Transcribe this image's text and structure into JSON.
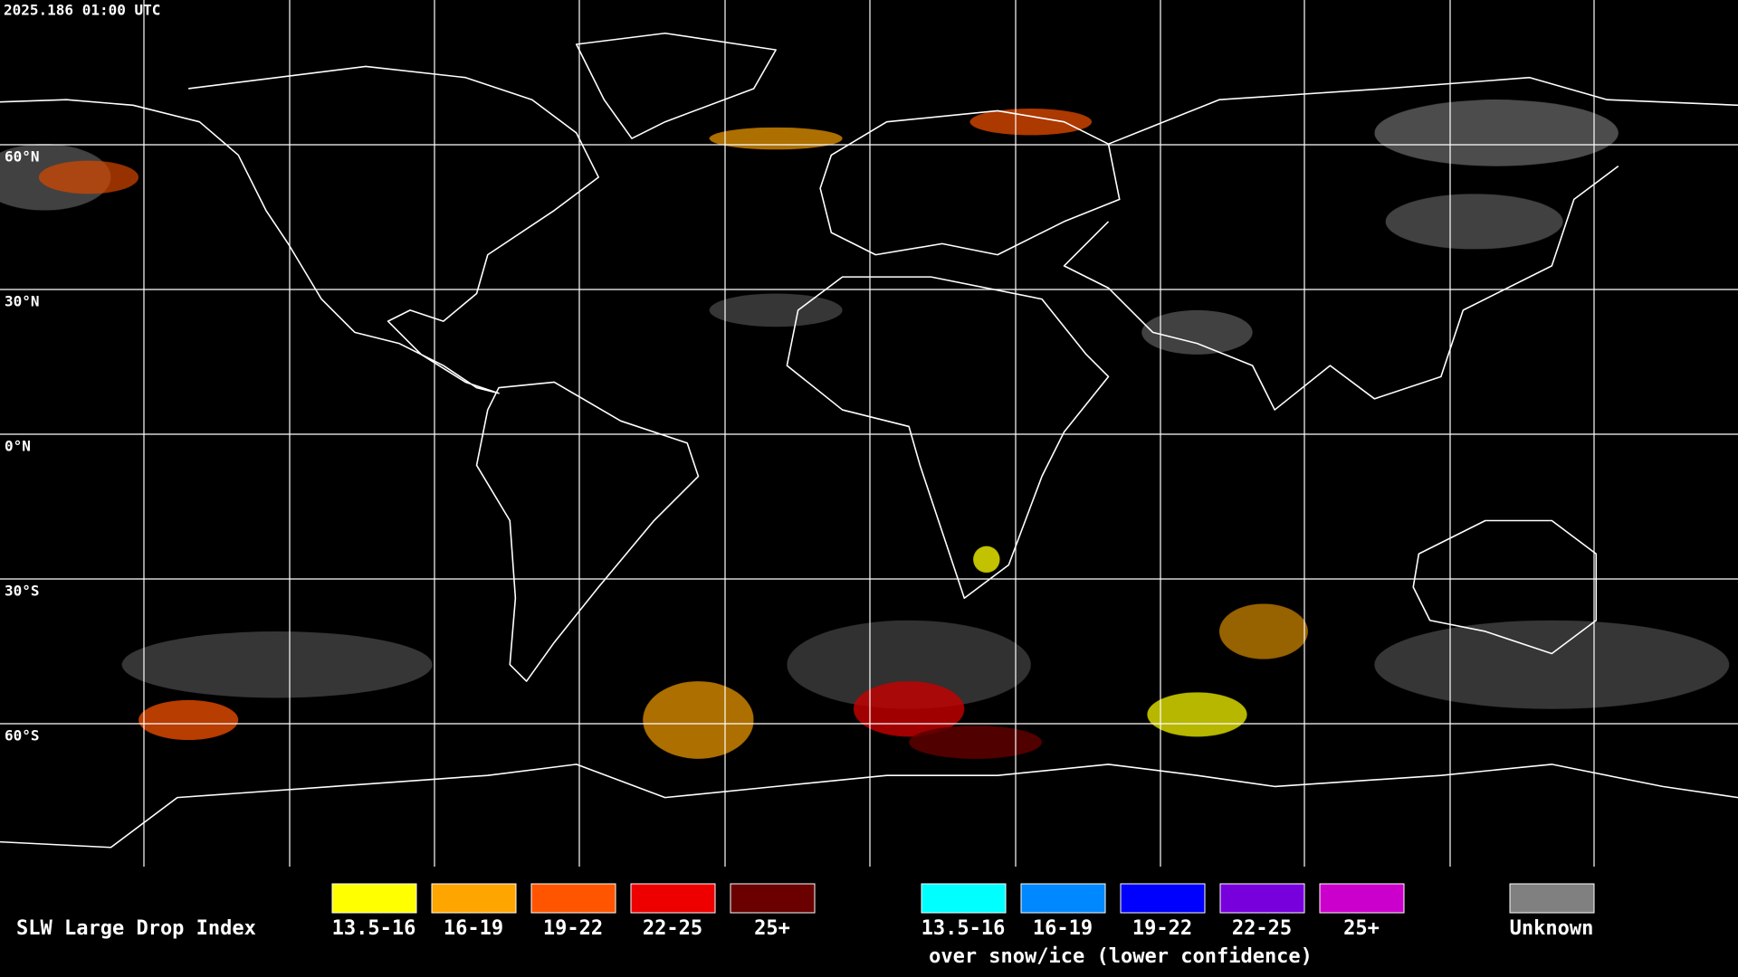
{
  "header": {
    "timestamp": "2025.186 01:00 UTC"
  },
  "map": {
    "latitude_labels": [
      "60°N",
      "30°N",
      "0°N",
      "30°S",
      "60°S"
    ]
  },
  "legend": {
    "title": "SLW Large Drop Index",
    "items": [
      {
        "label": "13.5-16",
        "color": "#ffff00"
      },
      {
        "label": "16-19",
        "color": "#ffa500"
      },
      {
        "label": "19-22",
        "color": "#ff5500"
      },
      {
        "label": "22-25",
        "color": "#ee0000"
      },
      {
        "label": "25+",
        "color": "#6a0000"
      }
    ],
    "snow_items": [
      {
        "label": "13.5-16",
        "color": "#00ffff"
      },
      {
        "label": "16-19",
        "color": "#0088ff"
      },
      {
        "label": "19-22",
        "color": "#0000ff"
      },
      {
        "label": "22-25",
        "color": "#7700dd"
      },
      {
        "label": "25+",
        "color": "#cc00cc"
      }
    ],
    "snow_caption": "over snow/ice (lower confidence)",
    "unknown": {
      "label": "Unknown",
      "color": "#808080"
    }
  }
}
